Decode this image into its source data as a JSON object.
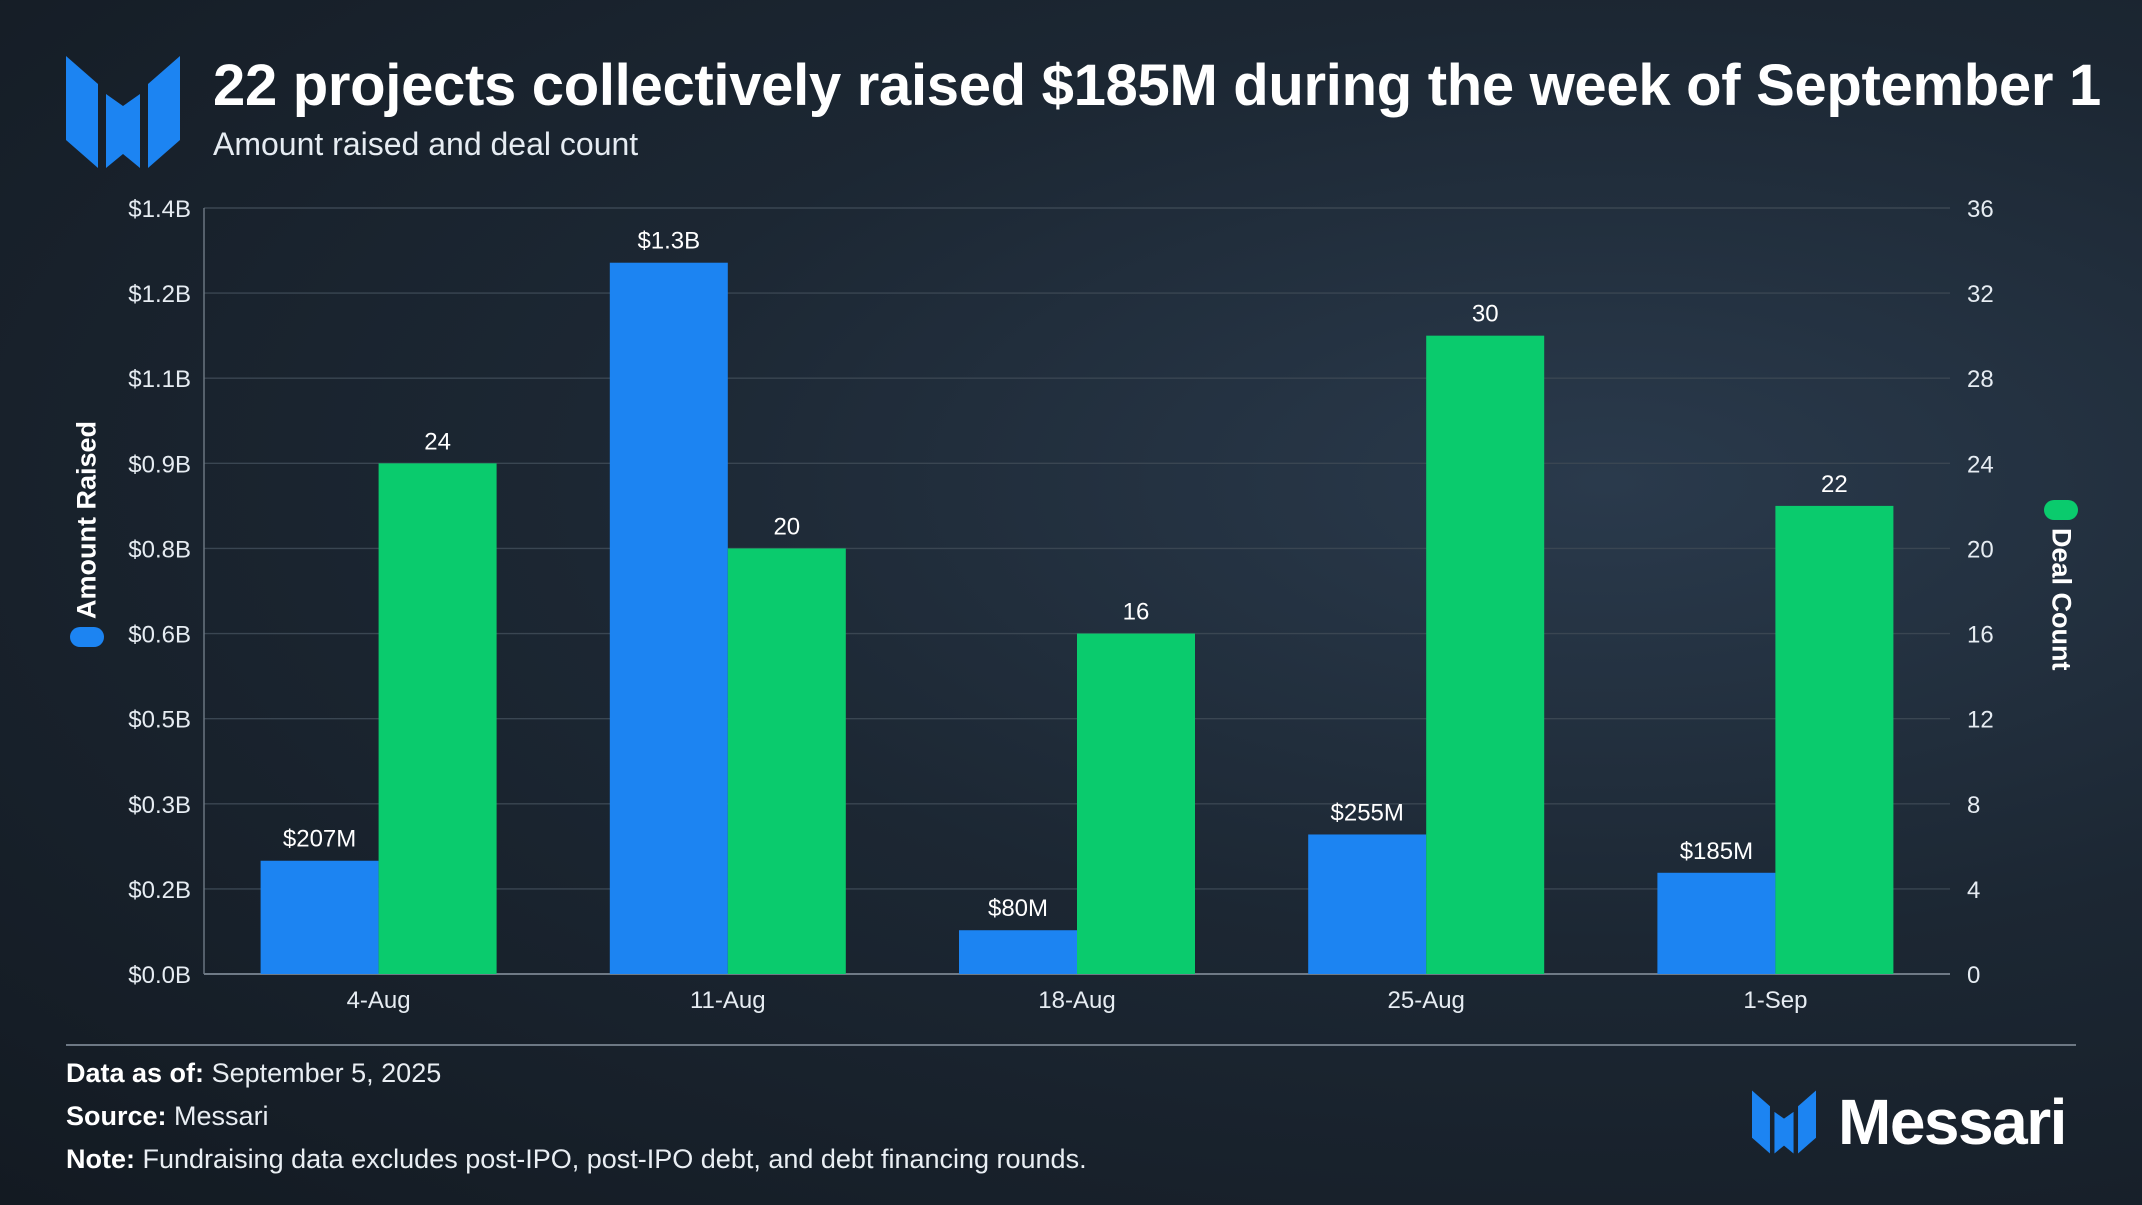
{
  "header": {
    "title": "22 projects collectively raised $185M during the week of September 1",
    "subtitle": "Amount raised and deal count"
  },
  "colors": {
    "amount": "#1c84f2",
    "deals": "#0acb6d",
    "accent_logo": "#1c84f2"
  },
  "chart_data": {
    "type": "bar",
    "title": "22 projects collectively raised $185M during the week of September 1",
    "subtitle": "Amount raised and deal count",
    "categories": [
      "4-Aug",
      "11-Aug",
      "18-Aug",
      "25-Aug",
      "1-Sep"
    ],
    "series": [
      {
        "name": "Amount Raised",
        "axis": "left",
        "values": [
          0.207,
          1.3,
          0.08,
          0.255,
          0.185
        ],
        "labels": [
          "$207M",
          "$1.3B",
          "$80M",
          "$255M",
          "$185M"
        ]
      },
      {
        "name": "Deal Count",
        "axis": "right",
        "values": [
          24,
          20,
          16,
          30,
          22
        ],
        "labels": [
          "24",
          "20",
          "16",
          "30",
          "22"
        ]
      }
    ],
    "y_left": {
      "label": "Amount Raised",
      "ylim": [
        0,
        1.4
      ],
      "ticks": [
        "$0.0B",
        "$0.2B",
        "$0.3B",
        "$0.5B",
        "$0.6B",
        "$0.8B",
        "$0.9B",
        "$1.1B",
        "$1.2B",
        "$1.4B"
      ]
    },
    "y_right": {
      "label": "Deal Count",
      "ylim": [
        0,
        36
      ],
      "ticks": [
        "0",
        "4",
        "8",
        "12",
        "16",
        "20",
        "24",
        "28",
        "32",
        "36"
      ]
    },
    "grid": true
  },
  "footer": {
    "data_as_of_label": "Data as of:",
    "data_as_of_value": "September 5, 2025",
    "source_label": "Source:",
    "source_value": "Messari",
    "note_label": "Note:",
    "note_value": "Fundraising data excludes post-IPO, post-IPO debt, and debt financing rounds."
  },
  "brand": {
    "name": "Messari"
  }
}
